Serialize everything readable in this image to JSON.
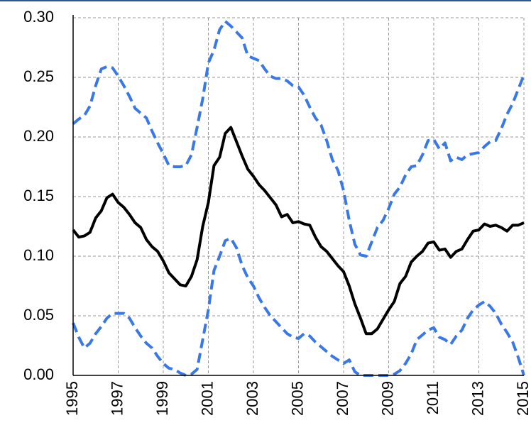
{
  "chart_data": {
    "type": "line",
    "x": [
      1995,
      1995.25,
      1995.5,
      1995.75,
      1996,
      1996.25,
      1996.5,
      1996.75,
      1997,
      1997.25,
      1997.5,
      1997.75,
      1998,
      1998.25,
      1998.5,
      1998.75,
      1999,
      1999.25,
      1999.5,
      1999.75,
      2000,
      2000.25,
      2000.5,
      2000.75,
      2001,
      2001.25,
      2001.5,
      2001.75,
      2002,
      2002.25,
      2002.5,
      2002.75,
      2003,
      2003.25,
      2003.5,
      2003.75,
      2004,
      2004.25,
      2004.5,
      2004.75,
      2005,
      2005.25,
      2005.5,
      2005.75,
      2006,
      2006.25,
      2006.5,
      2006.75,
      2007,
      2007.25,
      2007.5,
      2007.75,
      2008,
      2008.25,
      2008.5,
      2008.75,
      2009,
      2009.25,
      2009.5,
      2009.75,
      2010,
      2010.25,
      2010.5,
      2010.75,
      2011,
      2011.25,
      2011.5,
      2011.75,
      2012,
      2012.25,
      2012.5,
      2012.75,
      2013,
      2013.25,
      2013.5,
      2013.75,
      2014,
      2014.25,
      2014.5,
      2014.75,
      2015
    ],
    "series": [
      {
        "color": "#3a78e6",
        "dashed": true,
        "values": [
          0.211,
          0.215,
          0.218,
          0.226,
          0.243,
          0.257,
          0.259,
          0.258,
          0.251,
          0.243,
          0.234,
          0.224,
          0.22,
          0.216,
          0.205,
          0.195,
          0.186,
          0.176,
          0.175,
          0.175,
          0.176,
          0.185,
          0.208,
          0.232,
          0.262,
          0.273,
          0.29,
          0.297,
          0.293,
          0.288,
          0.283,
          0.268,
          0.266,
          0.264,
          0.257,
          0.251,
          0.249,
          0.249,
          0.247,
          0.243,
          0.242,
          0.235,
          0.225,
          0.216,
          0.21,
          0.197,
          0.181,
          0.172,
          0.155,
          0.13,
          0.11,
          0.101,
          0.1,
          0.112,
          0.124,
          0.13,
          0.14,
          0.152,
          0.158,
          0.168,
          0.175,
          0.176,
          0.185,
          0.197,
          0.198,
          0.19,
          0.195,
          0.18,
          0.183,
          0.181,
          0.185,
          0.186,
          0.187,
          0.192,
          0.196,
          0.197,
          0.207,
          0.219,
          0.228,
          0.24,
          0.252
        ]
      },
      {
        "color": "#000000",
        "dashed": false,
        "values": [
          0.122,
          0.116,
          0.117,
          0.12,
          0.132,
          0.138,
          0.149,
          0.152,
          0.145,
          0.141,
          0.135,
          0.128,
          0.124,
          0.114,
          0.108,
          0.104,
          0.096,
          0.086,
          0.081,
          0.076,
          0.075,
          0.083,
          0.097,
          0.125,
          0.145,
          0.176,
          0.183,
          0.203,
          0.208,
          0.196,
          0.184,
          0.173,
          0.167,
          0.16,
          0.155,
          0.149,
          0.143,
          0.133,
          0.135,
          0.128,
          0.129,
          0.127,
          0.126,
          0.116,
          0.108,
          0.104,
          0.098,
          0.092,
          0.087,
          0.075,
          0.06,
          0.048,
          0.035,
          0.035,
          0.039,
          0.047,
          0.055,
          0.062,
          0.077,
          0.083,
          0.095,
          0.1,
          0.104,
          0.111,
          0.112,
          0.105,
          0.106,
          0.099,
          0.104,
          0.106,
          0.114,
          0.121,
          0.122,
          0.127,
          0.125,
          0.126,
          0.124,
          0.121,
          0.126,
          0.126,
          0.128
        ]
      },
      {
        "color": "#3a78e6",
        "dashed": true,
        "values": [
          0.044,
          0.032,
          0.023,
          0.027,
          0.035,
          0.041,
          0.048,
          0.052,
          0.052,
          0.052,
          0.048,
          0.04,
          0.033,
          0.027,
          0.023,
          0.016,
          0.01,
          0.006,
          0.005,
          0.002,
          0.0,
          0.001,
          0.005,
          0.03,
          0.055,
          0.088,
          0.1,
          0.113,
          0.115,
          0.107,
          0.092,
          0.082,
          0.075,
          0.065,
          0.057,
          0.05,
          0.045,
          0.04,
          0.035,
          0.032,
          0.031,
          0.035,
          0.033,
          0.028,
          0.024,
          0.02,
          0.016,
          0.013,
          0.01,
          0.013,
          0.003,
          0.0,
          0.0,
          0.0,
          0.0,
          0.0,
          0.0,
          0.001,
          0.004,
          0.01,
          0.018,
          0.03,
          0.034,
          0.038,
          0.04,
          0.032,
          0.03,
          0.026,
          0.033,
          0.038,
          0.048,
          0.055,
          0.059,
          0.062,
          0.058,
          0.052,
          0.043,
          0.036,
          0.028,
          0.015,
          0.0
        ]
      }
    ],
    "xlim": [
      1995,
      2015
    ],
    "xticks": [
      1995,
      1997,
      1999,
      2001,
      2003,
      2005,
      2007,
      2009,
      2011,
      2013,
      2015
    ],
    "ylim": [
      0,
      0.3
    ],
    "yticks": [
      {
        "value": 0,
        "label": "0.00"
      },
      {
        "value": 0.05,
        "label": "0.05"
      },
      {
        "value": 0.1,
        "label": "0.10"
      },
      {
        "value": 0.15,
        "label": "0.15"
      },
      {
        "value": 0.2,
        "label": "0.20"
      },
      {
        "value": 0.25,
        "label": "0.25"
      },
      {
        "value": 0.3,
        "label": "0.30"
      }
    ],
    "grid": true
  }
}
